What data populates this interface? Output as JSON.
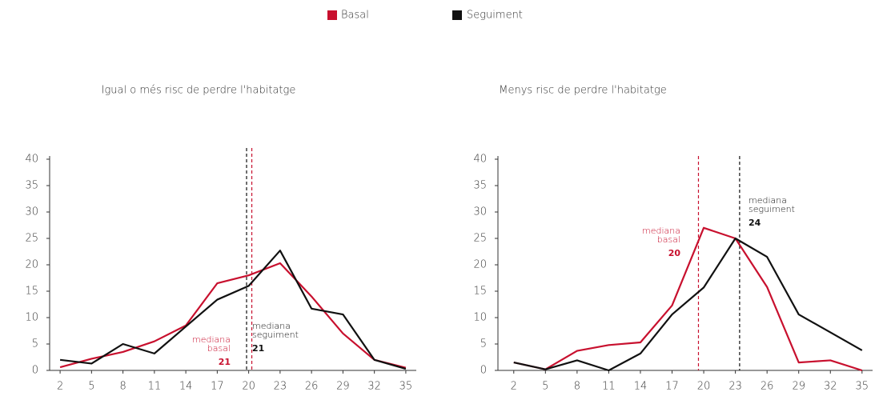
{
  "chart_data": [
    {
      "type": "line",
      "title": "Igual o més risc de perdre l'habitatge",
      "x": [
        2,
        5,
        8,
        11,
        14,
        17,
        20,
        23,
        26,
        29,
        32,
        35
      ],
      "series": [
        {
          "name": "Basal",
          "color": "#c8102e",
          "values": [
            0.6,
            2.2,
            3.5,
            5.5,
            8.5,
            16.5,
            18,
            20.3,
            14,
            7,
            2,
            0.5
          ]
        },
        {
          "name": "Seguiment",
          "color": "#111111",
          "values": [
            2,
            1.3,
            5,
            3.2,
            8.3,
            13.4,
            16,
            22.7,
            11.7,
            10.6,
            2,
            0.3
          ]
        }
      ],
      "annotations": [
        {
          "series": 0,
          "lines": [
            "mediana",
            "basal"
          ],
          "value": "21",
          "x": 20.3
        },
        {
          "series": 1,
          "lines": [
            "mediana",
            "seguiment"
          ],
          "value": "21",
          "x": 19.8
        }
      ],
      "xlim": [
        1,
        36
      ],
      "xticks": [
        2,
        5,
        8,
        11,
        14,
        17,
        20,
        23,
        26,
        29,
        32,
        35
      ],
      "ylim": [
        0,
        40
      ],
      "yticks": [
        0,
        5,
        10,
        15,
        20,
        25,
        30,
        35,
        40
      ]
    },
    {
      "type": "line",
      "title": "Menys risc de perdre l'habitatge",
      "x": [
        2,
        5,
        8,
        11,
        14,
        17,
        20,
        23,
        26,
        29,
        32,
        35
      ],
      "series": [
        {
          "name": "Basal",
          "color": "#c8102e",
          "values": [
            1.5,
            0.2,
            3.7,
            4.8,
            5.3,
            12.3,
            27,
            25,
            15.8,
            1.5,
            1.9,
            0
          ]
        },
        {
          "name": "Seguiment",
          "color": "#111111",
          "values": [
            1.5,
            0.2,
            1.9,
            0,
            3.2,
            10.6,
            15.7,
            25,
            21.5,
            10.6,
            7.2,
            3.8
          ]
        }
      ],
      "annotations": [
        {
          "series": 0,
          "lines": [
            "mediana",
            "basal"
          ],
          "value": "20",
          "x": 19.5
        },
        {
          "series": 1,
          "lines": [
            "mediana",
            "seguiment"
          ],
          "value": "24",
          "x": 23.4
        }
      ],
      "xlim": [
        0.5,
        36
      ],
      "xticks": [
        2,
        5,
        8,
        11,
        14,
        17,
        20,
        23,
        26,
        29,
        32,
        35
      ],
      "ylim": [
        0,
        40
      ],
      "yticks": [
        0,
        5,
        10,
        15,
        20,
        25,
        30,
        35,
        40
      ]
    }
  ]
}
